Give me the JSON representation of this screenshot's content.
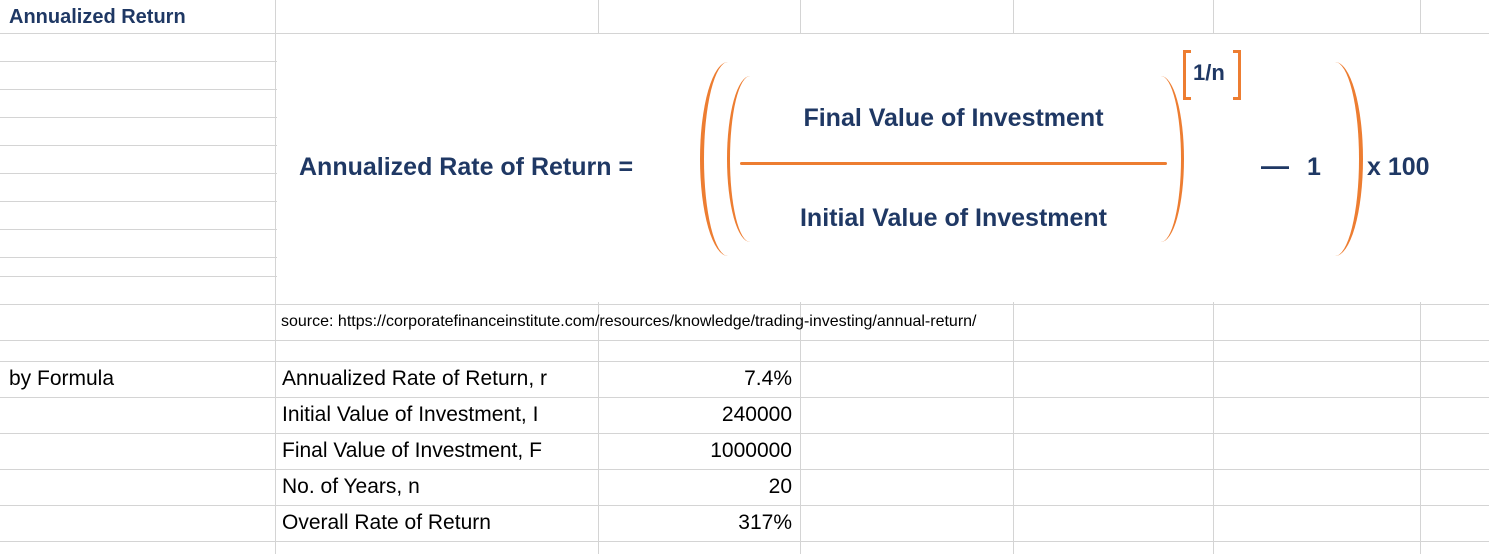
{
  "colors": {
    "navy": "#1F3864",
    "orange": "#ED7D31",
    "grid": "#D4D4D4",
    "ink": "#000000"
  },
  "title_cell": "Annualized Return",
  "formula": {
    "lhs": "Annualized Rate of Return =",
    "numerator": "Final Value of Investment",
    "denominator": "Initial Value of Investment",
    "exponent": "1/n",
    "minus": "—",
    "one": "1",
    "multiplier": "x 100"
  },
  "source_line": "source: https://corporatefinanceinstitute.com/resources/knowledge/trading-investing/annual-return/",
  "table": {
    "section_label": "by Formula",
    "rows": [
      {
        "label": "Annualized Rate of Return, r",
        "value": "7.4%"
      },
      {
        "label": "Initial Value of Investment, I",
        "value": "240000"
      },
      {
        "label": "Final Value of Investment, F",
        "value": "1000000"
      },
      {
        "label": "No. of Years, n",
        "value": "20"
      },
      {
        "label": "Overall Rate of Return",
        "value": "317%"
      }
    ]
  }
}
